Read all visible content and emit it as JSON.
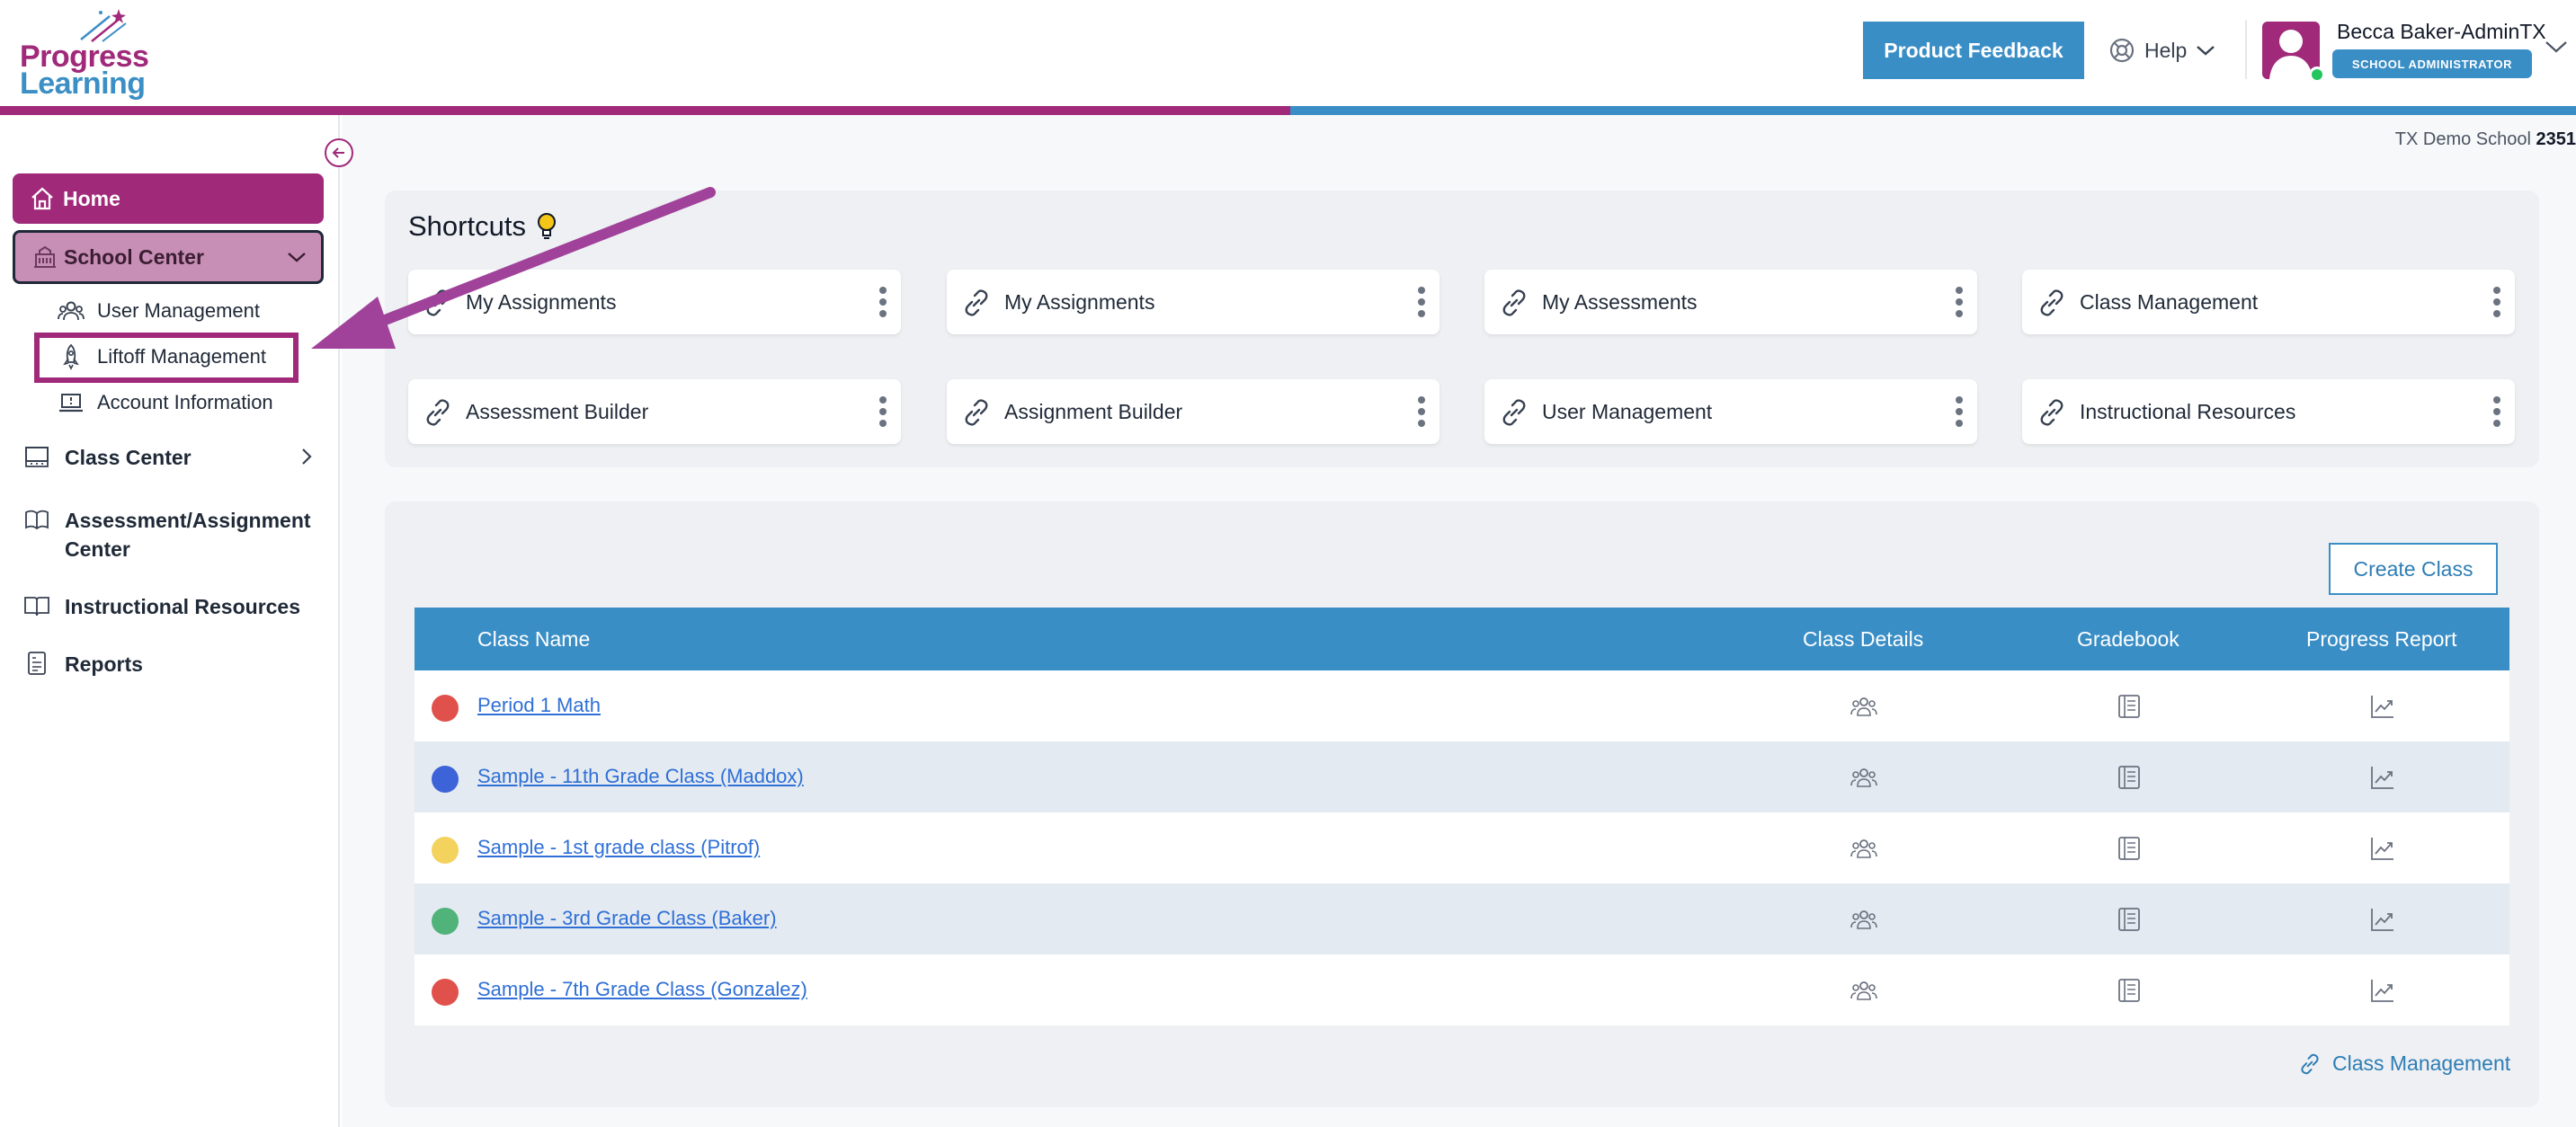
{
  "brand": {
    "line1": "Progress",
    "line2": "Learning"
  },
  "header": {
    "feedback_label": "Product Feedback",
    "help_label": "Help",
    "user_name": "Becca Baker-AdminTX",
    "user_role": "SCHOOL ADMINISTRATOR"
  },
  "sidebar": {
    "home": "Home",
    "school_center": "School Center",
    "school_sub": [
      "User Management",
      "Liftoff Management",
      "Account Information"
    ],
    "class_center": "Class Center",
    "assessment_line1": "Assessment/Assignment",
    "assessment_line2": "Center",
    "instructional": "Instructional Resources",
    "reports": "Reports"
  },
  "main": {
    "school_name": "TX Demo School",
    "school_code": "2351",
    "shortcuts_title": "Shortcuts",
    "shortcuts": [
      "My Assignments",
      "My Assignments",
      "My Assessments",
      "Class Management",
      "Assessment Builder",
      "Assignment Builder",
      "User Management",
      "Instructional Resources"
    ],
    "create_class": "Create Class",
    "columns": [
      "Class Name",
      "Class Details",
      "Gradebook",
      "Progress Report"
    ],
    "classes": [
      {
        "name": "Period 1 Math",
        "color": "#e0514b"
      },
      {
        "name": "Sample - 11th Grade Class (Maddox)",
        "color": "#3d63d9"
      },
      {
        "name": "Sample - 1st grade class (Pitrof)",
        "color": "#f3d25e"
      },
      {
        "name": "Sample - 3rd Grade Class (Baker)",
        "color": "#4fb37a"
      },
      {
        "name": "Sample - 7th Grade Class (Gonzalez)",
        "color": "#e0514b"
      }
    ],
    "class_management_link": "Class Management"
  },
  "colors": {
    "primary": "#a0297a",
    "accent": "#3a8ec6",
    "link": "#2f6fd6"
  },
  "icons": [
    "home-icon",
    "school-icon",
    "users-icon",
    "rocket-icon",
    "laptop-icon",
    "chalkboard-icon",
    "book-icon",
    "open-book-icon",
    "report-icon",
    "link-icon",
    "kebab-icon",
    "gradebook-icon",
    "chart-icon",
    "lifebuoy-icon",
    "chevron-down-icon",
    "arrow-left-icon",
    "lightbulb-icon"
  ]
}
